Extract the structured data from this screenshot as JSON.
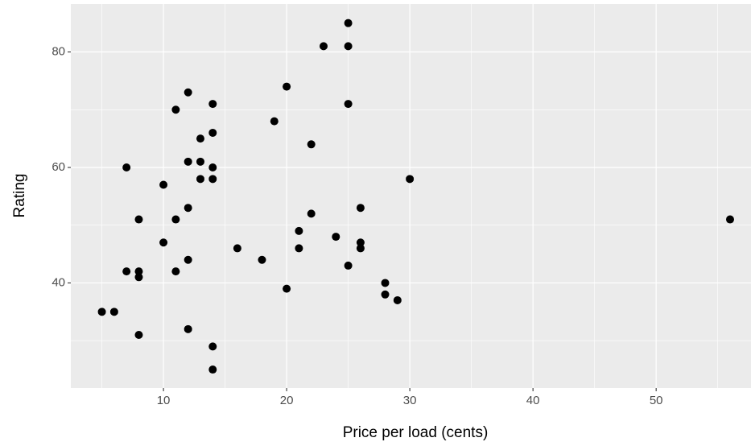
{
  "chart_data": {
    "type": "scatter",
    "x_label": "Price per load (cents)",
    "y_label": "Rating",
    "x": [
      25,
      23,
      25,
      20,
      12,
      14,
      25,
      11,
      19,
      14,
      13,
      22,
      7,
      14,
      12,
      13,
      30,
      13,
      14,
      10,
      12,
      26,
      22,
      8,
      11,
      56,
      21,
      24,
      10,
      26,
      26,
      16,
      21,
      12,
      18,
      25,
      7,
      8,
      11,
      8,
      28,
      20,
      28,
      29,
      5,
      6,
      8,
      12,
      14,
      14
    ],
    "y": [
      85,
      81,
      81,
      74,
      73,
      71,
      71,
      70,
      68,
      66,
      65,
      64,
      60,
      60,
      61,
      61,
      58,
      58,
      58,
      57,
      53,
      53,
      52,
      51,
      51,
      51,
      49,
      48,
      47,
      47,
      46,
      46,
      46,
      44,
      44,
      43,
      42,
      42,
      42,
      41,
      40,
      39,
      38,
      37,
      35,
      35,
      31,
      32,
      29,
      25
    ],
    "color": "#000000",
    "xlim": [
      2.48,
      57.7
    ],
    "ylim": [
      21.8,
      88.3
    ],
    "xticks": [
      10,
      20,
      30,
      40,
      50
    ],
    "yticks": [
      40,
      60,
      80
    ],
    "xminor": [
      5,
      15,
      25,
      35,
      45,
      55
    ],
    "yminor": [
      30,
      50,
      70
    ],
    "grid": true
  }
}
